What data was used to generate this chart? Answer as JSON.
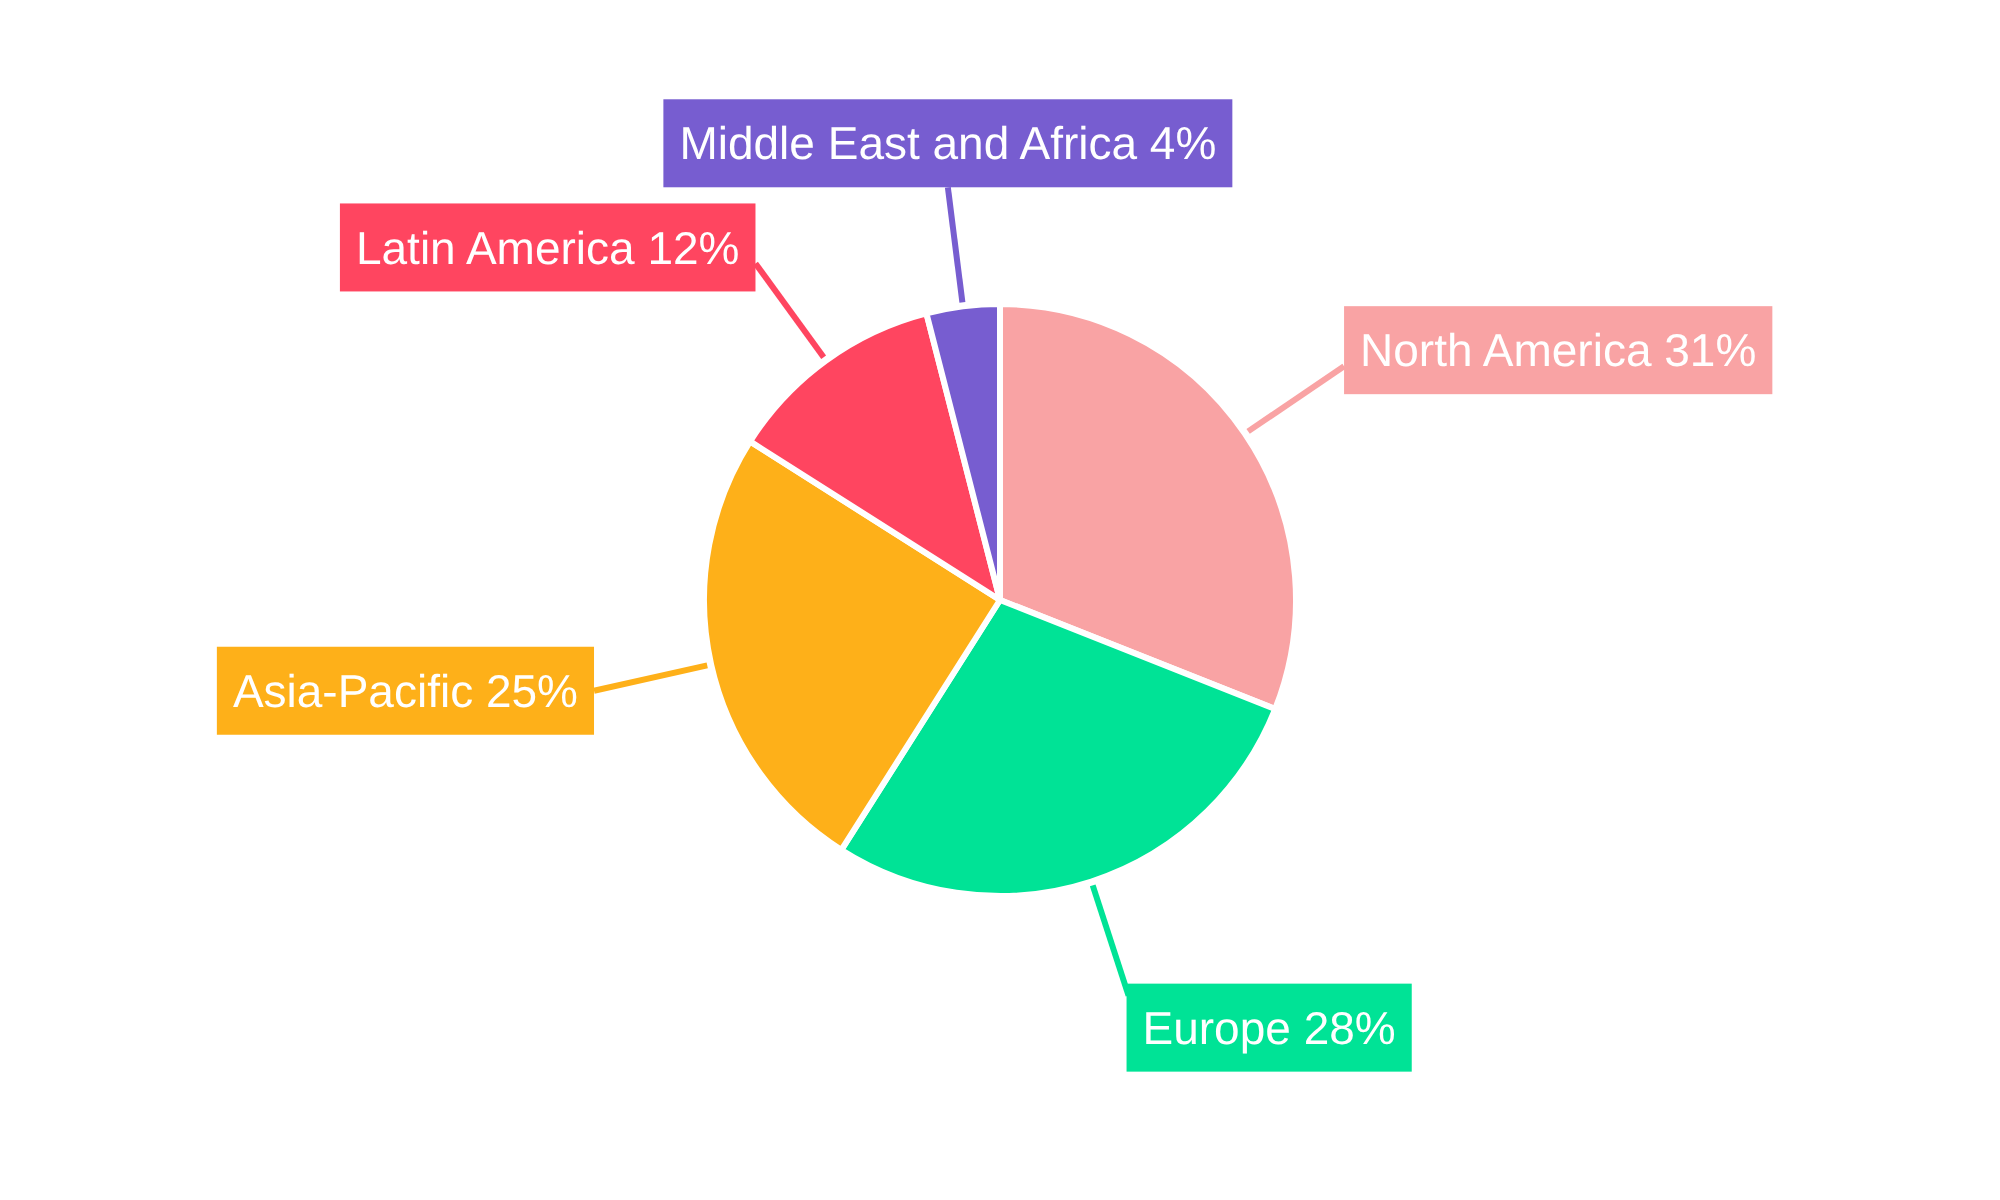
{
  "chart_data": {
    "type": "pie",
    "categories": [
      "North America",
      "Europe",
      "Asia-Pacific",
      "Latin America",
      "Middle East and Africa"
    ],
    "values": [
      31,
      28,
      25,
      12,
      4
    ],
    "value_labels": [
      "31%",
      "28%",
      "25%",
      "12%",
      "4%"
    ],
    "colors": [
      "#f9a3a4",
      "#00e396",
      "#feb019",
      "#ff4560",
      "#775dd0"
    ],
    "legend": false
  }
}
